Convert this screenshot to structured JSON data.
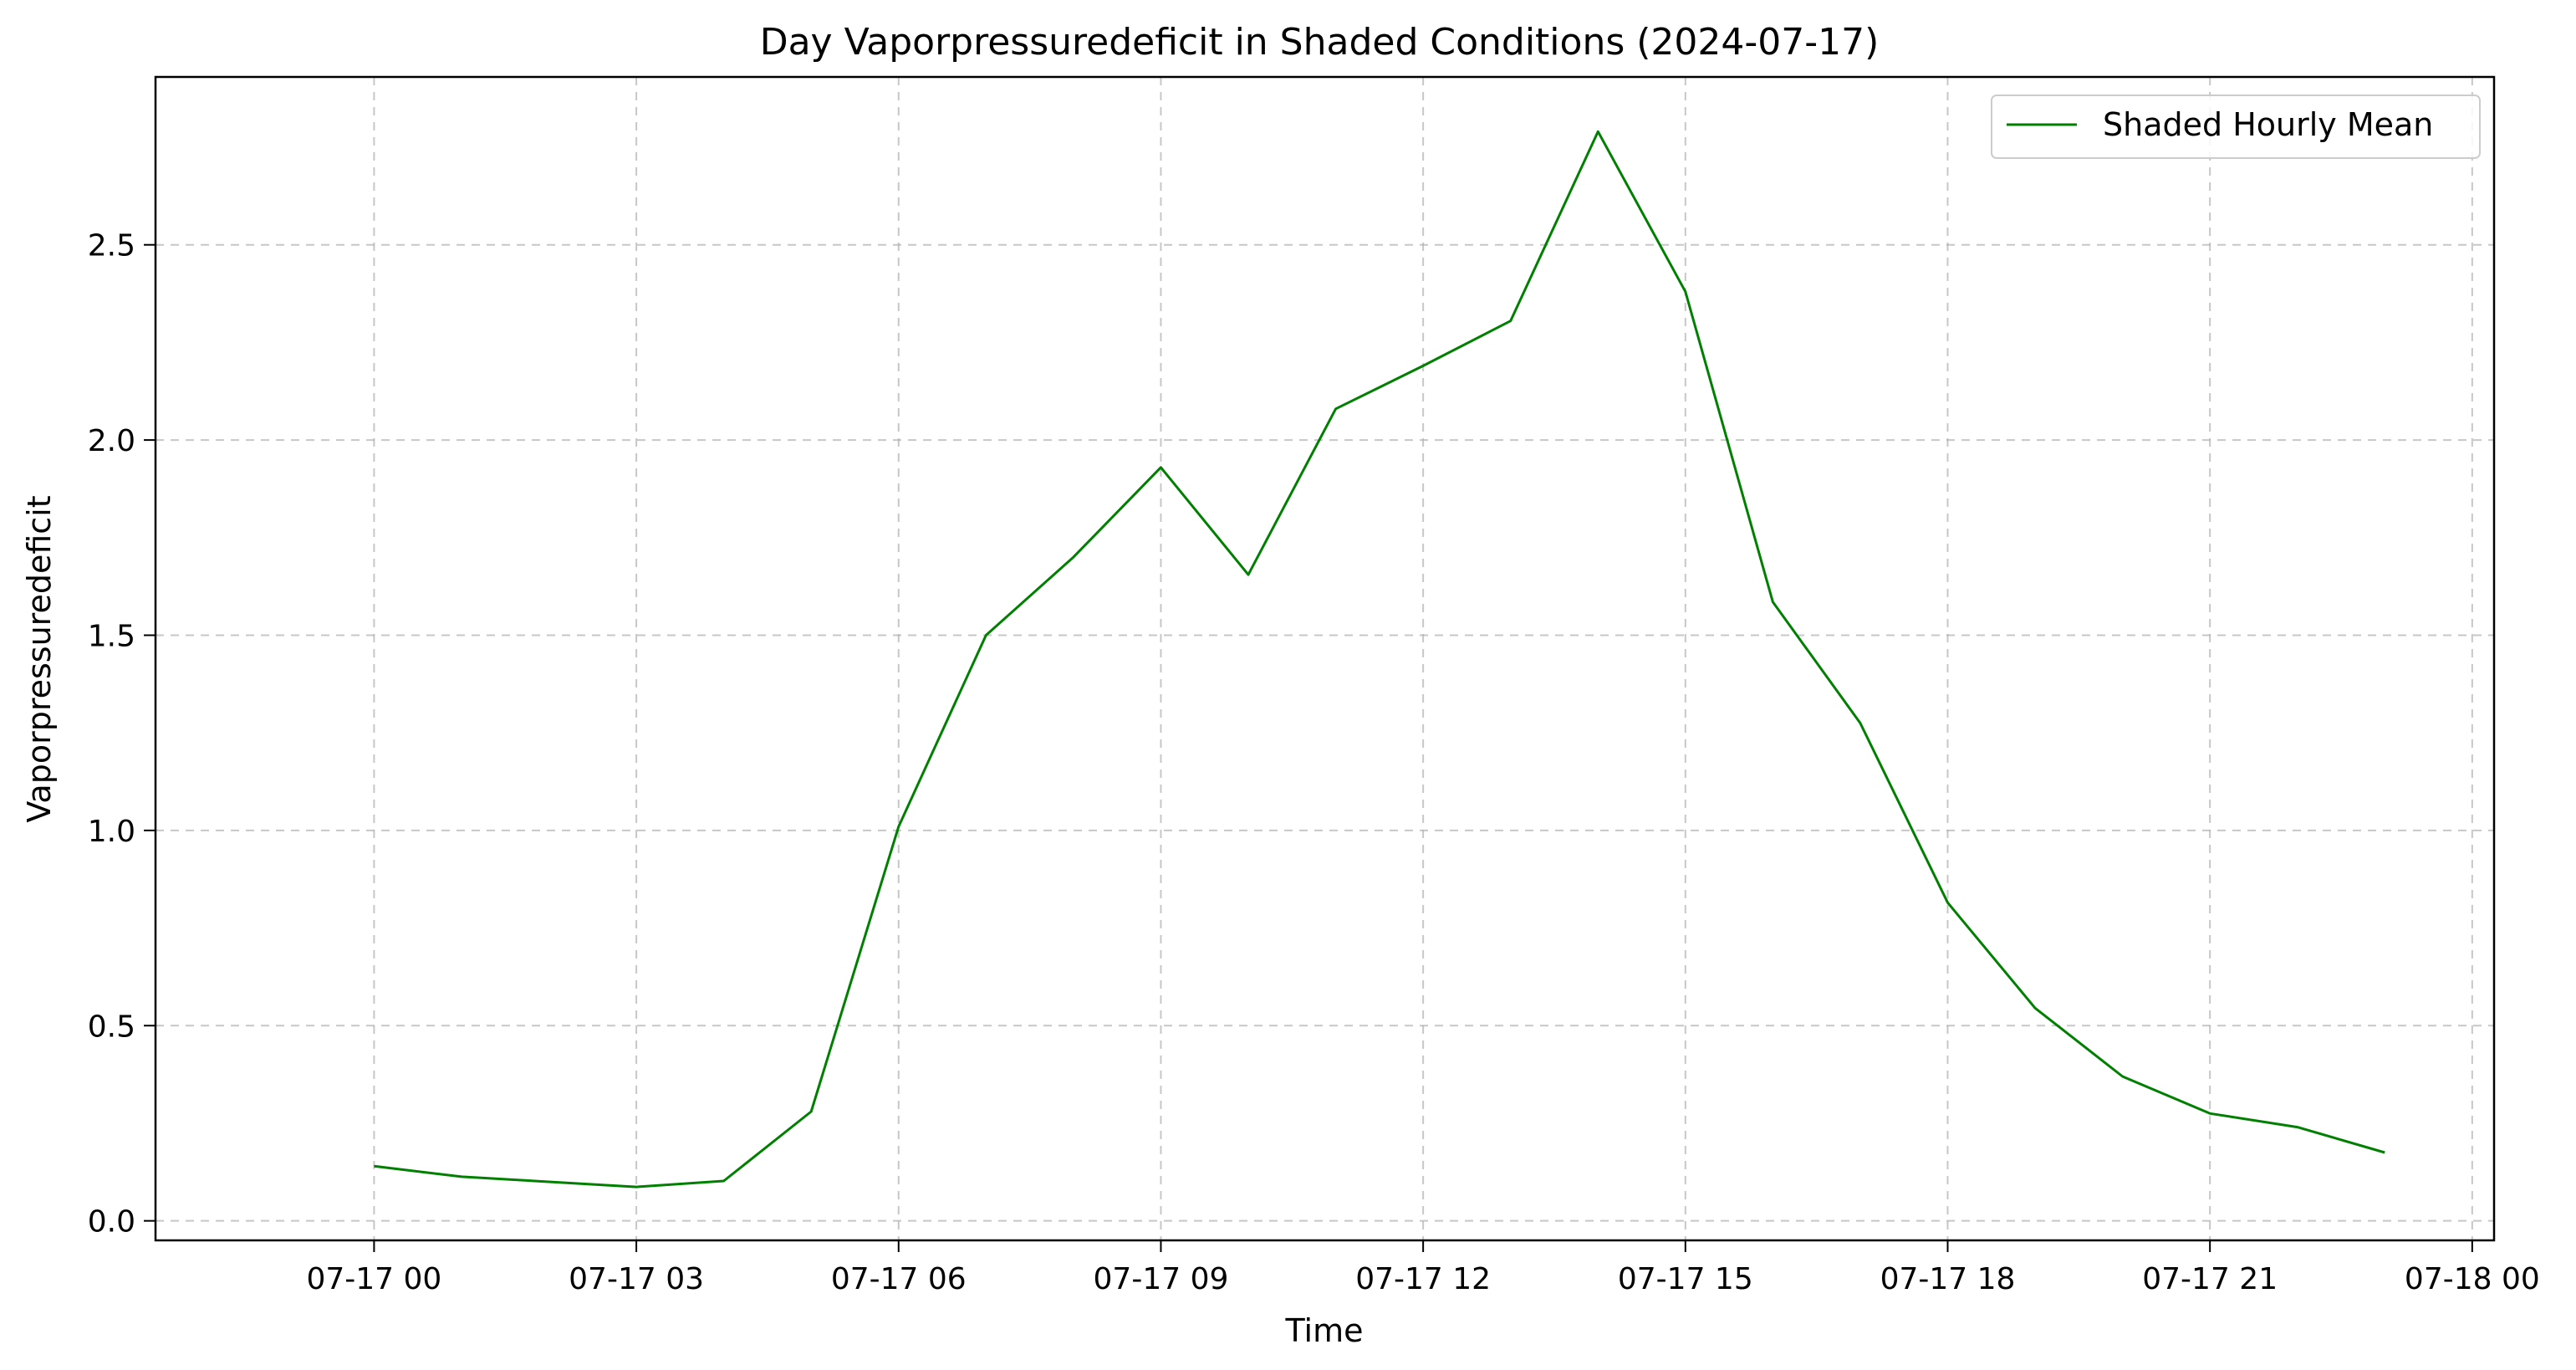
{
  "chart_data": {
    "type": "line",
    "title": "Day Vaporpressuredeficit in Shaded Conditions (2024-07-17)",
    "xlabel": "Time",
    "ylabel": "Vaporpressuredeficit",
    "x": [
      "07-17 00:00",
      "07-17 01:00",
      "07-17 02:00",
      "07-17 03:00",
      "07-17 04:00",
      "07-17 05:00",
      "07-17 06:00",
      "07-17 07:00",
      "07-17 08:00",
      "07-17 09:00",
      "07-17 10:00",
      "07-17 11:00",
      "07-17 12:00",
      "07-17 13:00",
      "07-17 14:00",
      "07-17 15:00",
      "07-17 16:00",
      "07-17 17:00",
      "07-17 18:00",
      "07-17 19:00",
      "07-17 20:00",
      "07-17 21:00",
      "07-17 22:00",
      "07-17 23:00"
    ],
    "series": [
      {
        "name": "Shaded Hourly Mean",
        "color": "#008000",
        "values": [
          0.14,
          0.113,
          0.1,
          0.087,
          0.102,
          0.28,
          1.01,
          1.5,
          1.7,
          1.93,
          1.655,
          2.08,
          2.19,
          2.305,
          2.79,
          2.38,
          1.585,
          1.275,
          0.815,
          0.545,
          0.37,
          0.275,
          0.24,
          0.175
        ]
      }
    ],
    "xlim": [
      "07-16 21:30",
      "07-18 00:15"
    ],
    "ylim": [
      -0.05,
      2.93
    ],
    "x_ticks": [
      "07-17 00",
      "07-17 03",
      "07-17 06",
      "07-17 09",
      "07-17 12",
      "07-17 15",
      "07-17 18",
      "07-17 21",
      "07-18 00"
    ],
    "y_ticks": [
      "0.0",
      "0.5",
      "1.0",
      "1.5",
      "2.0",
      "2.5"
    ],
    "grid": true,
    "legend_position": "top-right"
  }
}
